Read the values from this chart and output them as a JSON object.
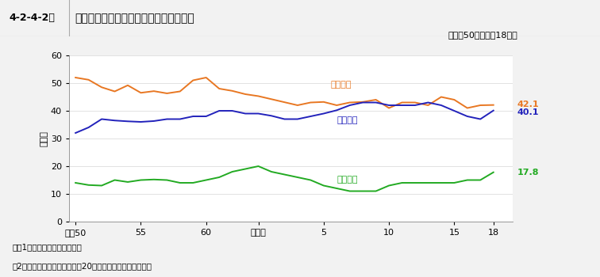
{
  "header_label": "4-2-4-2図",
  "header_title": "少年院新入院者の年齢層別構成比の推移",
  "subtitle": "（昭和50年～平成18年）",
  "ylabel": "（％）",
  "note1": "注　1　矯正統計年報による。",
  "note2": "　2「年長少年」は，入院時に20歳に達している者を含む。",
  "x_labels": [
    "昭和50",
    "55",
    "60",
    "平成元",
    "5",
    "10",
    "15",
    "18"
  ],
  "x_positions": [
    0,
    5,
    10,
    14,
    19,
    24,
    29,
    32
  ],
  "nencho_label": "年長少年",
  "chukan_label": "中間少年",
  "nensho_label": "年少少年",
  "nencho_color": "#e87722",
  "chukan_color": "#2222bb",
  "nensho_color": "#22aa22",
  "nencho_end_value": "42.1",
  "chukan_end_value": "40.1",
  "nensho_end_value": "17.8",
  "ylim": [
    0,
    60
  ],
  "yticks": [
    0,
    10,
    20,
    30,
    40,
    50,
    60
  ],
  "nencho_data": [
    52.0,
    51.2,
    48.5,
    47.0,
    49.2,
    46.5,
    47.1,
    46.3,
    47.0,
    51.0,
    52.0,
    48.0,
    47.2,
    46.0,
    45.3,
    44.2,
    43.1,
    42.0,
    43.0,
    43.2,
    42.0,
    43.0,
    43.2,
    44.0,
    41.0,
    43.0,
    43.0,
    42.0,
    45.0,
    44.0,
    41.0,
    42.0,
    42.1
  ],
  "chukan_data": [
    32.0,
    34.0,
    37.0,
    36.5,
    36.2,
    36.0,
    36.3,
    37.0,
    37.0,
    38.0,
    38.0,
    40.0,
    40.0,
    39.0,
    39.0,
    38.2,
    37.0,
    37.0,
    38.0,
    39.0,
    40.2,
    42.0,
    43.0,
    43.0,
    42.0,
    42.0,
    42.0,
    43.0,
    42.0,
    40.0,
    38.0,
    37.0,
    40.1
  ],
  "nensho_data": [
    14.0,
    13.2,
    13.0,
    15.0,
    14.3,
    15.0,
    15.2,
    15.0,
    14.0,
    14.0,
    15.0,
    16.0,
    18.0,
    19.0,
    20.0,
    18.0,
    17.0,
    16.0,
    15.0,
    13.0,
    12.0,
    11.0,
    11.0,
    11.0,
    13.0,
    14.0,
    14.0,
    14.0,
    14.0,
    14.0,
    15.0,
    15.0,
    17.8
  ],
  "header_bg": "#d4d4d4",
  "header_border": "#aaaaaa",
  "fig_bg": "#f2f2f2",
  "plot_bg": "#ffffff",
  "grid_color": "#dddddd",
  "spine_color": "#888888"
}
